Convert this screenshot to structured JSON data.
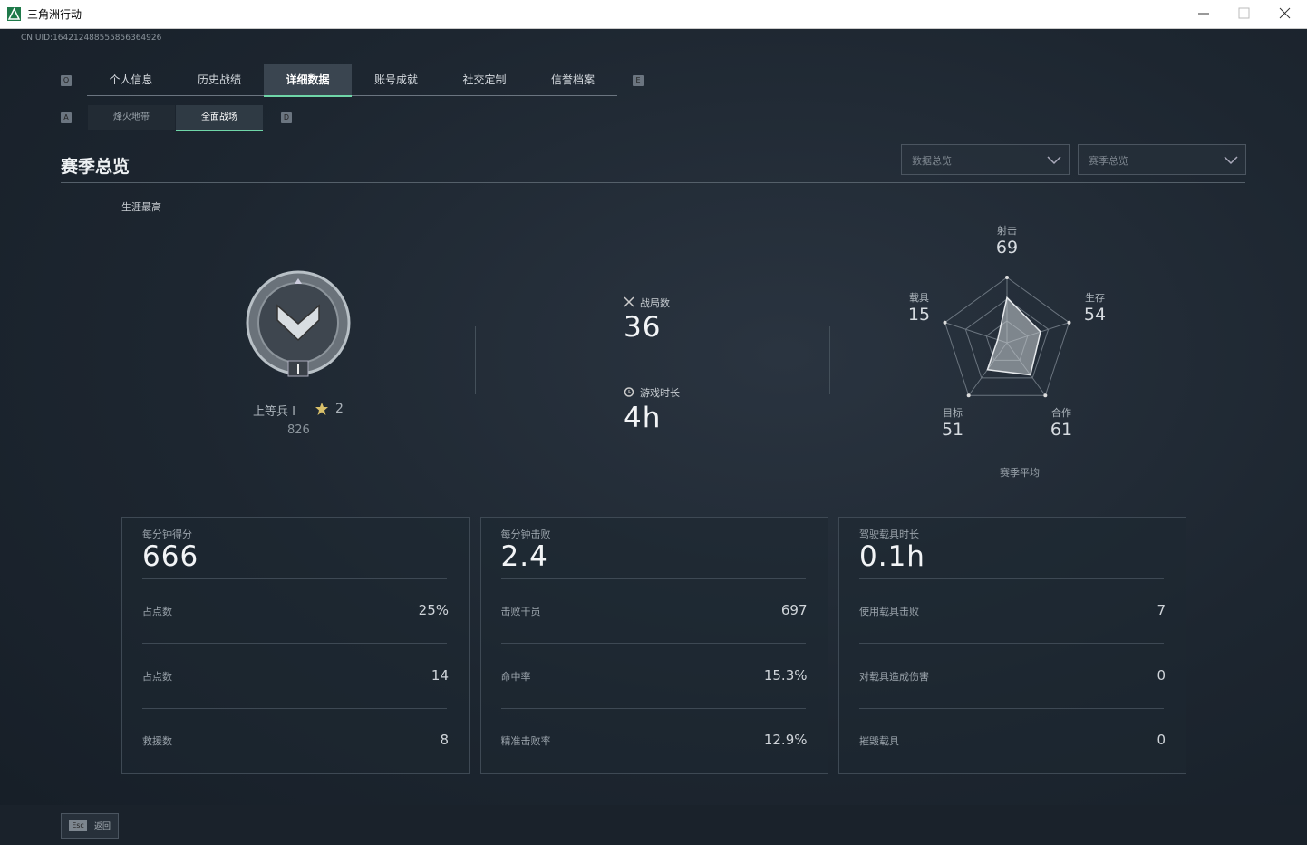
{
  "window": {
    "title": "三角洲行动"
  },
  "uid": "CN UID:164212488555856364926",
  "tabs": {
    "left_key": "Q",
    "right_key": "E",
    "items": [
      {
        "label": "个人信息",
        "active": false
      },
      {
        "label": "历史战绩",
        "active": false
      },
      {
        "label": "详细数据",
        "active": true
      },
      {
        "label": "账号成就",
        "active": false
      },
      {
        "label": "社交定制",
        "active": false
      },
      {
        "label": "信誉档案",
        "active": false
      }
    ]
  },
  "subtabs": {
    "left_key": "A",
    "right_key": "D",
    "items": [
      {
        "label": "烽火地带",
        "active": false
      },
      {
        "label": "全面战场",
        "active": true
      }
    ]
  },
  "section": {
    "title": "赛季总览",
    "filters": [
      "数据总览",
      "赛季总览"
    ]
  },
  "career": {
    "label": "生涯最高",
    "rank": "上等兵 I",
    "stars": 2,
    "score": 826
  },
  "stats": [
    {
      "label": "战局数",
      "value": 36
    },
    {
      "label": "游戏时长",
      "value": "4h"
    }
  ],
  "radar": {
    "axes": [
      {
        "label": "射击",
        "value": 69
      },
      {
        "label": "生存",
        "value": 54
      },
      {
        "label": "合作",
        "value": 61
      },
      {
        "label": "目标",
        "value": 51
      },
      {
        "label": "载具",
        "value": 15
      }
    ],
    "legend": "赛季平均"
  },
  "cards": [
    {
      "title": "每分钟得分",
      "value": 666,
      "rows": [
        {
          "label": "占点数",
          "value": "25%"
        },
        {
          "label": "占点数",
          "value": 14
        },
        {
          "label": "救援数",
          "value": 8
        }
      ]
    },
    {
      "title": "每分钟击败",
      "value": 2.4,
      "rows": [
        {
          "label": "击败干员",
          "value": 697
        },
        {
          "label": "命中率",
          "value": "15.3%"
        },
        {
          "label": "精准击败率",
          "value": "12.9%"
        }
      ]
    },
    {
      "title": "驾驶载具时长",
      "value": "0.1h",
      "rows": [
        {
          "label": "使用载具击败",
          "value": 7
        },
        {
          "label": "对载具造成伤害",
          "value": 0
        },
        {
          "label": "摧毁载具",
          "value": 0
        }
      ]
    }
  ],
  "footer": {
    "key": "Esc",
    "label": "返回"
  }
}
